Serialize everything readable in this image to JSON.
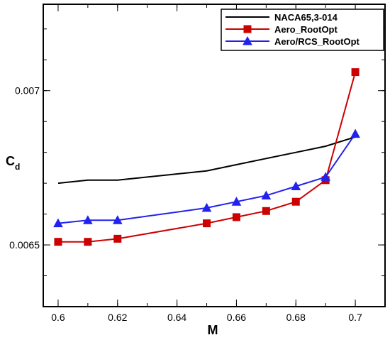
{
  "chart_data": {
    "type": "line",
    "xlabel": "M",
    "ylabel": {
      "main": "C",
      "sub": "d"
    },
    "xlim": [
      0.595,
      0.71
    ],
    "ylim": [
      0.0063,
      0.00728
    ],
    "x_ticks": [
      {
        "value": 0.6,
        "label": "0.6"
      },
      {
        "value": 0.62,
        "label": "0.62"
      },
      {
        "value": 0.64,
        "label": "0.64"
      },
      {
        "value": 0.66,
        "label": "0.66"
      },
      {
        "value": 0.68,
        "label": "0.68"
      },
      {
        "value": 0.7,
        "label": "0.7"
      }
    ],
    "x_minor_step": 0.01,
    "y_ticks": [
      {
        "value": 0.0065,
        "label": "0.0065"
      },
      {
        "value": 0.007,
        "label": "0.007"
      }
    ],
    "y_minor_step": 0.0001,
    "grid": false,
    "legend_position": "top-right",
    "series": [
      {
        "name": "NACA65,3-014",
        "color": "#000000",
        "marker": "none",
        "x": [
          0.6,
          0.61,
          0.62,
          0.65,
          0.66,
          0.67,
          0.68,
          0.69,
          0.7
        ],
        "y": [
          0.0067,
          0.00671,
          0.00671,
          0.00674,
          0.00676,
          0.00678,
          0.0068,
          0.00682,
          0.00685
        ]
      },
      {
        "name": "Aero_RootOpt",
        "color": "#cc0000",
        "marker": "square",
        "x": [
          0.6,
          0.61,
          0.62,
          0.65,
          0.66,
          0.67,
          0.68,
          0.69,
          0.7
        ],
        "y": [
          0.00651,
          0.00651,
          0.00652,
          0.00657,
          0.00659,
          0.00661,
          0.00664,
          0.00671,
          0.00706
        ]
      },
      {
        "name": "Aero/RCS_RootOpt",
        "color": "#2222ee",
        "marker": "triangle",
        "x": [
          0.6,
          0.61,
          0.62,
          0.65,
          0.66,
          0.67,
          0.68,
          0.69,
          0.7
        ],
        "y": [
          0.00657,
          0.00658,
          0.00658,
          0.00662,
          0.00664,
          0.00666,
          0.00669,
          0.00672,
          0.00686
        ]
      }
    ]
  }
}
